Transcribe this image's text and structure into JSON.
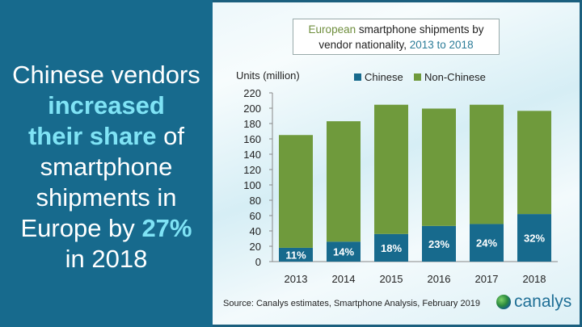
{
  "headline": {
    "parts": [
      "Chinese vendors",
      "increased",
      "their share",
      "of",
      "smartphone",
      "shipments in",
      "Europe by",
      "27%",
      "in 2018"
    ]
  },
  "title": {
    "part1": "European",
    "part2": "smartphone shipments by",
    "part3": "vendor nationality,",
    "part4": "2013 to 2018"
  },
  "source": "Source: Canalys estimates, Smartphone  Analysis, February 2019",
  "logo": "canalys",
  "colors": {
    "chinese": "#176a8d",
    "non_chinese": "#6f9a3c",
    "panel": "#176a8d",
    "highlight": "#7fe3f5"
  },
  "chart_data": {
    "type": "bar",
    "stacked": true,
    "ylabel": "Units (million)",
    "ylim": [
      0,
      220
    ],
    "yticks": [
      0,
      20,
      40,
      60,
      80,
      100,
      120,
      140,
      160,
      180,
      200,
      220
    ],
    "grid": false,
    "legend": "top",
    "categories": [
      "2013",
      "2014",
      "2015",
      "2016",
      "2017",
      "2018"
    ],
    "series": [
      {
        "name": "Chinese",
        "values": [
          18,
          26,
          36,
          46.5,
          49,
          62
        ],
        "labels": [
          "11%",
          "14%",
          "18%",
          "23%",
          "24%",
          "32%"
        ]
      },
      {
        "name": "Non-Chinese",
        "values": [
          147,
          157,
          168.5,
          153,
          155.5,
          134.5
        ]
      }
    ]
  }
}
